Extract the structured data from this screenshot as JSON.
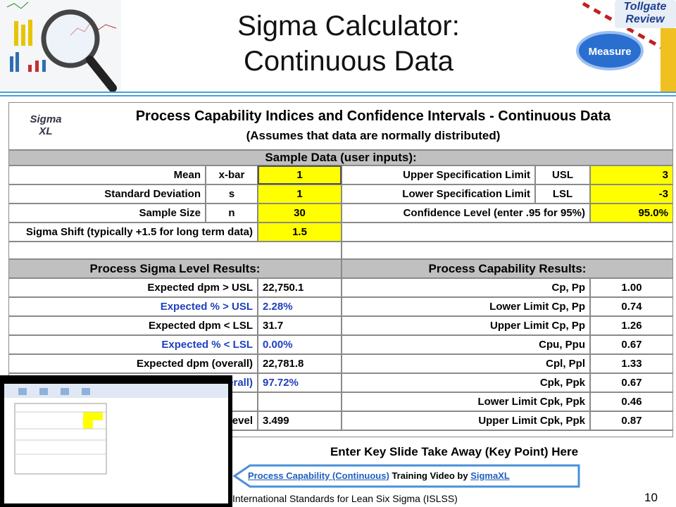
{
  "slide": {
    "title": [
      "Sigma Calculator:",
      "Continuous Data"
    ],
    "tollgate": [
      "Tollgate",
      "Review"
    ],
    "stage": "Measure",
    "takeaway": "Enter Key Slide Take Away (Key Point) Here",
    "link": {
      "video": "Process Capability (Continuous)",
      "text": "Training Video by",
      "vendor": "SigmaXL"
    },
    "footer": "International Standards for Lean Six Sigma (ISLSS)",
    "page_number": "10"
  },
  "sheet": {
    "logo": [
      "Sigma",
      "XL"
    ],
    "title": "Process Capability Indices and Confidence Intervals - Continuous Data",
    "subtitle": "(Assumes that data are normally distributed)",
    "inputs_header": "Sample Data (user inputs):",
    "inputs": [
      {
        "label": "Mean",
        "symbol": "x-bar",
        "value": "1",
        "right_label": "Upper Specification Limit",
        "right_symbol": "USL",
        "right_value": "3"
      },
      {
        "label": "Standard Deviation",
        "symbol": "s",
        "value": "1",
        "right_label": "Lower Specification Limit",
        "right_symbol": "LSL",
        "right_value": "-3"
      },
      {
        "label": "Sample Size",
        "symbol": "n",
        "value": "30",
        "right_label": "Confidence Level (enter .95 for 95%)",
        "right_value": "95.0%"
      },
      {
        "label": "Sigma Shift (typically +1.5 for long term data)",
        "value": "1.5"
      }
    ],
    "results_headers": [
      "Process Sigma Level Results:",
      "Process Capability Results:"
    ],
    "sigma_results": [
      {
        "label": "Expected dpm > USL",
        "value": "22,750.1"
      },
      {
        "label": "Expected % > USL",
        "value": "2.28%",
        "color": "#1f3fbf"
      },
      {
        "label": "Expected dpm < LSL",
        "value": "31.7"
      },
      {
        "label": "Expected % < LSL",
        "value": "0.00%",
        "color": "#1f3fbf"
      },
      {
        "label": "Expected dpm (overall)",
        "value": "22,781.8"
      },
      {
        "label": "erall)",
        "value": "97.72%",
        "color": "#1f3fbf"
      },
      {},
      {
        "label": "evel",
        "value": "3.499"
      }
    ],
    "capability_results": [
      {
        "label": "Cp, Pp",
        "value": "1.00"
      },
      {
        "label": "Lower Limit Cp, Pp",
        "value": "0.74"
      },
      {
        "label": "Upper Limit Cp, Pp",
        "value": "1.26"
      },
      {
        "label": "Cpu, Ppu",
        "value": "0.67"
      },
      {
        "label": "Cpl, Ppl",
        "value": "1.33"
      },
      {
        "label": "Cpk, Ppk",
        "value": "0.67"
      },
      {
        "label": "Lower Limit Cpk, Ppk",
        "value": "0.46"
      },
      {
        "label": "Upper Limit Cpk, Ppk",
        "value": "0.87"
      }
    ]
  }
}
